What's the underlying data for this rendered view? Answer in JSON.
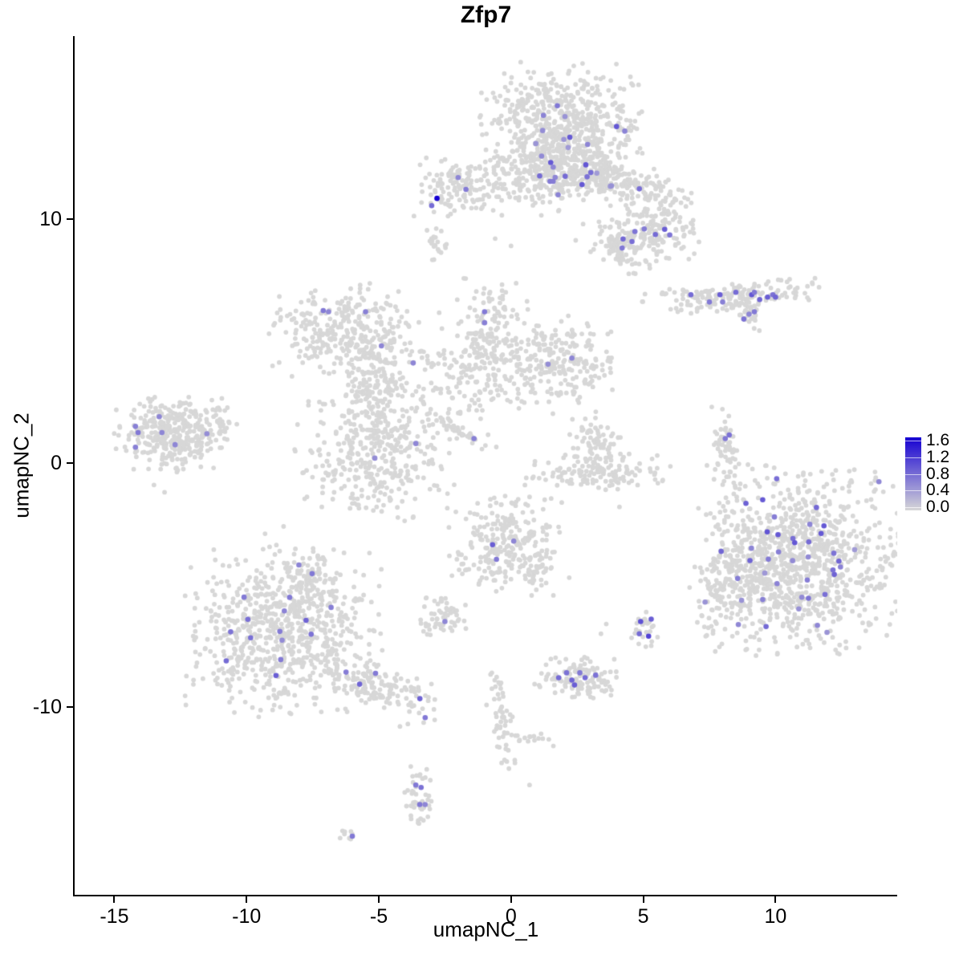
{
  "chart_data": {
    "type": "scatter",
    "title": "Zfp7",
    "xlabel": "umapNC_1",
    "ylabel": "umapNC_2",
    "x_ticks": [
      -15,
      -10,
      -5,
      0,
      5,
      10
    ],
    "y_ticks": [
      -10,
      0,
      10
    ],
    "xlim": [
      -16.5,
      14.6
    ],
    "ylim": [
      -17.7,
      17.5
    ],
    "grid": false,
    "legend": {
      "position": "right",
      "tick_labels": [
        "1.6",
        "1.2",
        "0.8",
        "0.4",
        "0.0"
      ],
      "value_min": 0.0,
      "value_max": 1.6,
      "color_high": "#1500d2",
      "color_low": "#d7d7d7"
    },
    "point_color_zero": "#d7d7d7",
    "point_radius_px": 2.9,
    "expressing_point_radius_px": 3.3,
    "seed": 42,
    "clusters": [
      {
        "name": "top-core",
        "center": [
          1.9,
          13.8
        ],
        "sd": [
          1.4,
          1.2
        ],
        "angle_deg": 0,
        "n_cells": 620,
        "n_expressing": 13,
        "expr_range": [
          0.45,
          0.95
        ]
      },
      {
        "name": "top-south",
        "center": [
          1.6,
          11.8
        ],
        "sd": [
          1.25,
          0.75
        ],
        "angle_deg": 0,
        "n_cells": 260,
        "n_expressing": 8,
        "expr_range": [
          0.45,
          0.95
        ]
      },
      {
        "name": "top-right-arm",
        "center": [
          3.8,
          11.6
        ],
        "sd": [
          1.45,
          0.42
        ],
        "angle_deg": 14,
        "n_cells": 200,
        "n_expressing": 7,
        "expr_range": [
          0.45,
          0.95
        ]
      },
      {
        "name": "top-right-blob",
        "center": [
          5.4,
          9.7
        ],
        "sd": [
          0.8,
          0.72
        ],
        "angle_deg": 0,
        "n_cells": 160,
        "n_expressing": 5,
        "expr_range": [
          0.5,
          0.95
        ]
      },
      {
        "name": "top-right-tail",
        "center": [
          4.1,
          8.9
        ],
        "sd": [
          0.75,
          0.38
        ],
        "angle_deg": 28,
        "n_cells": 90,
        "n_expressing": 3,
        "expr_range": [
          0.5,
          0.9
        ]
      },
      {
        "name": "top-left-small",
        "center": [
          -2.0,
          11.3
        ],
        "sd": [
          0.8,
          0.55
        ],
        "angle_deg": 0,
        "n_cells": 130,
        "n_expressing": 1,
        "expr_range": [
          0.5,
          0.8
        ]
      },
      {
        "name": "stray-comma",
        "center": [
          -2.85,
          8.8
        ],
        "sd": [
          0.2,
          0.4
        ],
        "angle_deg": 0,
        "n_cells": 22,
        "n_expressing": 0
      },
      {
        "name": "right-streak",
        "center": [
          8.3,
          6.8
        ],
        "sd": [
          1.55,
          0.28
        ],
        "angle_deg": -3,
        "n_cells": 170,
        "n_expressing": 0
      },
      {
        "name": "right-streak-tail",
        "center": [
          9.0,
          6.05
        ],
        "sd": [
          0.42,
          0.18
        ],
        "angle_deg": 40,
        "n_cells": 22,
        "n_expressing": 0
      },
      {
        "name": "mid-left",
        "center": [
          -6.4,
          5.4
        ],
        "sd": [
          1.3,
          0.85
        ],
        "angle_deg": -8,
        "n_cells": 290,
        "n_expressing": 0
      },
      {
        "name": "mid-branch",
        "center": [
          -5.1,
          3.3
        ],
        "sd": [
          0.55,
          1.0
        ],
        "angle_deg": 14,
        "n_cells": 150,
        "n_expressing": 0
      },
      {
        "name": "central-round",
        "center": [
          -5.15,
          0.3
        ],
        "sd": [
          1.45,
          1.25
        ],
        "angle_deg": 0,
        "n_cells": 360,
        "n_expressing": 0
      },
      {
        "name": "central-sparse",
        "center": [
          -2.2,
          3.3
        ],
        "sd": [
          1.9,
          1.4
        ],
        "angle_deg": 0,
        "n_cells": 140,
        "n_expressing": 0
      },
      {
        "name": "center-y",
        "center": [
          -0.85,
          5.0
        ],
        "sd": [
          0.62,
          1.2
        ],
        "angle_deg": 6,
        "n_cells": 180,
        "n_expressing": 0
      },
      {
        "name": "center-right",
        "center": [
          1.7,
          4.2
        ],
        "sd": [
          1.1,
          0.85
        ],
        "angle_deg": 0,
        "n_cells": 230,
        "n_expressing": 0
      },
      {
        "name": "diag-streak",
        "center": [
          -2.0,
          1.35
        ],
        "sd": [
          0.6,
          0.1
        ],
        "angle_deg": 32,
        "n_cells": 40,
        "n_expressing": 0
      },
      {
        "name": "smile-upper",
        "center": [
          3.2,
          0.9
        ],
        "sd": [
          0.5,
          0.6
        ],
        "angle_deg": 0,
        "n_cells": 70,
        "n_expressing": 0
      },
      {
        "name": "smile-lower",
        "center": [
          3.3,
          -0.45
        ],
        "sd": [
          1.3,
          0.38
        ],
        "angle_deg": 0,
        "n_cells": 130,
        "n_expressing": 0
      },
      {
        "name": "right-strip",
        "center": [
          8.15,
          0.35
        ],
        "sd": [
          0.22,
          0.95
        ],
        "angle_deg": -8,
        "n_cells": 60,
        "n_expressing": 0
      },
      {
        "name": "right-big",
        "center": [
          11.0,
          -4.0
        ],
        "sd": [
          1.8,
          1.8
        ],
        "angle_deg": 0,
        "n_cells": 950,
        "n_expressing": 38,
        "expr_range": [
          0.45,
          1.0
        ]
      },
      {
        "name": "right-big-arm",
        "center": [
          8.3,
          -5.0
        ],
        "sd": [
          0.7,
          1.35
        ],
        "angle_deg": 10,
        "n_cells": 160,
        "n_expressing": 4,
        "expr_range": [
          0.45,
          0.85
        ]
      },
      {
        "name": "bottom-left-big",
        "center": [
          -8.6,
          -6.9
        ],
        "sd": [
          1.7,
          1.65
        ],
        "angle_deg": 0,
        "n_cells": 720,
        "n_expressing": 15,
        "expr_range": [
          0.45,
          0.9
        ]
      },
      {
        "name": "bottom-left-top",
        "center": [
          -7.5,
          -4.8
        ],
        "sd": [
          0.45,
          0.6
        ],
        "angle_deg": 0,
        "n_cells": 70,
        "n_expressing": 1,
        "expr_range": [
          0.5,
          0.8
        ]
      },
      {
        "name": "bottom-left-tail",
        "center": [
          -5.3,
          -9.0
        ],
        "sd": [
          1.45,
          0.4
        ],
        "angle_deg": 20,
        "n_cells": 150,
        "n_expressing": 5,
        "expr_range": [
          0.5,
          0.9
        ]
      },
      {
        "name": "center-bottom",
        "center": [
          -0.2,
          -3.4
        ],
        "sd": [
          1.0,
          1.0
        ],
        "angle_deg": 0,
        "n_cells": 260,
        "n_expressing": 0
      },
      {
        "name": "center-bottom-tail",
        "center": [
          1.0,
          -4.6
        ],
        "sd": [
          0.18,
          0.5
        ],
        "angle_deg": 8,
        "n_cells": 22,
        "n_expressing": 0
      },
      {
        "name": "small-mid",
        "center": [
          -2.6,
          -6.4
        ],
        "sd": [
          0.45,
          0.4
        ],
        "angle_deg": 0,
        "n_cells": 60,
        "n_expressing": 0
      },
      {
        "name": "tiny-right-pair",
        "center": [
          5.05,
          -6.75
        ],
        "sd": [
          0.28,
          0.38
        ],
        "angle_deg": 0,
        "n_cells": 26,
        "n_expressing": 0
      },
      {
        "name": "bottom-center",
        "center": [
          2.4,
          -8.8
        ],
        "sd": [
          0.8,
          0.42
        ],
        "angle_deg": 0,
        "n_cells": 120,
        "n_expressing": 0
      },
      {
        "name": "thin-trail",
        "center": [
          -0.35,
          -10.5
        ],
        "sd": [
          0.22,
          1.0
        ],
        "angle_deg": -10,
        "n_cells": 55,
        "n_expressing": 0
      },
      {
        "name": "trail-side",
        "center": [
          0.75,
          -11.3
        ],
        "sd": [
          0.35,
          0.18
        ],
        "angle_deg": 0,
        "n_cells": 12,
        "n_expressing": 0
      },
      {
        "name": "bottom-vertical",
        "center": [
          -3.5,
          -13.7
        ],
        "sd": [
          0.28,
          0.65
        ],
        "angle_deg": 0,
        "n_cells": 48,
        "n_expressing": 0
      },
      {
        "name": "bottom-tiny",
        "center": [
          -6.1,
          -15.3
        ],
        "sd": [
          0.22,
          0.12
        ],
        "angle_deg": 0,
        "n_cells": 8,
        "n_expressing": 0
      },
      {
        "name": "left-island",
        "center": [
          -12.8,
          1.2
        ],
        "sd": [
          1.0,
          0.75
        ],
        "angle_deg": -6,
        "n_cells": 360,
        "n_expressing": 0
      },
      {
        "name": "left-island-tail",
        "center": [
          -11.3,
          1.5
        ],
        "sd": [
          0.45,
          0.18
        ],
        "angle_deg": -12,
        "n_cells": 28,
        "n_expressing": 0
      }
    ],
    "expressing_cells": [
      [
        -2.8,
        10.85,
        1.6
      ],
      [
        -3.0,
        10.55,
        0.8
      ],
      [
        -2.0,
        11.7,
        0.6
      ],
      [
        6.8,
        6.9,
        0.8
      ],
      [
        7.5,
        6.6,
        0.7
      ],
      [
        7.9,
        6.9,
        0.9
      ],
      [
        8.0,
        6.6,
        0.65
      ],
      [
        8.5,
        7.0,
        0.8
      ],
      [
        9.1,
        6.9,
        0.95
      ],
      [
        9.2,
        7.0,
        0.7
      ],
      [
        9.4,
        6.7,
        0.85
      ],
      [
        9.7,
        6.8,
        0.9
      ],
      [
        9.9,
        6.9,
        0.75
      ],
      [
        10.0,
        6.8,
        0.85
      ],
      [
        9.2,
        6.2,
        0.7
      ],
      [
        9.0,
        6.1,
        0.6
      ],
      [
        8.8,
        5.9,
        0.75
      ],
      [
        8.1,
        1.0,
        0.7
      ],
      [
        8.25,
        1.15,
        0.75
      ],
      [
        4.9,
        -6.5,
        1.0
      ],
      [
        5.3,
        -6.4,
        0.9
      ],
      [
        5.2,
        -7.1,
        1.1
      ],
      [
        4.85,
        -7.0,
        0.8
      ],
      [
        1.8,
        -8.8,
        0.8
      ],
      [
        2.1,
        -8.6,
        0.75
      ],
      [
        2.3,
        -8.9,
        0.85
      ],
      [
        2.6,
        -8.6,
        0.7
      ],
      [
        2.8,
        -8.8,
        0.8
      ],
      [
        3.2,
        -8.7,
        0.75
      ],
      [
        2.4,
        -9.1,
        0.9
      ],
      [
        -7.1,
        6.25,
        0.7
      ],
      [
        -6.9,
        6.2,
        0.6
      ],
      [
        -5.5,
        6.2,
        0.65
      ],
      [
        -4.9,
        4.8,
        0.6
      ],
      [
        -3.7,
        4.1,
        0.6
      ],
      [
        -3.6,
        0.8,
        0.6
      ],
      [
        -5.15,
        0.2,
        0.55
      ],
      [
        -1.0,
        6.2,
        0.7
      ],
      [
        -1.0,
        5.75,
        0.65
      ],
      [
        2.3,
        4.3,
        0.6
      ],
      [
        1.4,
        4.05,
        0.55
      ],
      [
        -1.4,
        1.0,
        0.65
      ],
      [
        -13.3,
        1.9,
        0.6
      ],
      [
        -14.2,
        1.5,
        0.65
      ],
      [
        -14.1,
        1.25,
        0.7
      ],
      [
        -13.2,
        1.25,
        0.6
      ],
      [
        -14.2,
        0.65,
        0.65
      ],
      [
        -12.7,
        0.75,
        0.6
      ],
      [
        -11.5,
        1.2,
        0.55
      ],
      [
        -2.5,
        -6.5,
        0.6
      ],
      [
        -3.6,
        -13.2,
        0.7
      ],
      [
        -3.4,
        -13.3,
        0.75
      ],
      [
        -3.45,
        -14.0,
        0.7
      ],
      [
        -3.25,
        -14.0,
        0.6
      ],
      [
        -6.0,
        -15.3,
        0.7
      ],
      [
        -0.7,
        -3.35,
        0.9
      ],
      [
        0.1,
        -3.2,
        0.6
      ],
      [
        -0.55,
        -3.95,
        0.7
      ]
    ],
    "background_singles": [
      [
        -0.6,
        9.2
      ],
      [
        0.0,
        8.9
      ],
      [
        2.6,
        2.7
      ],
      [
        4.1,
        -1.8
      ],
      [
        6.5,
        7.1
      ],
      [
        2.2,
        -4.7
      ],
      [
        0.7,
        -13.2
      ],
      [
        -4.2,
        -10.8
      ],
      [
        -3.9,
        -10.7
      ],
      [
        1.6,
        -11.6
      ],
      [
        1.2,
        -11.3
      ],
      [
        3.4,
        -7.0
      ],
      [
        3.6,
        -6.6
      ],
      [
        -9.3,
        -2.9
      ],
      [
        -8.6,
        -2.6
      ],
      [
        -13.5,
        -0.9
      ],
      [
        -13.1,
        -1.2
      ],
      [
        -0.2,
        7.0
      ],
      [
        6.0,
        11.0
      ]
    ]
  }
}
